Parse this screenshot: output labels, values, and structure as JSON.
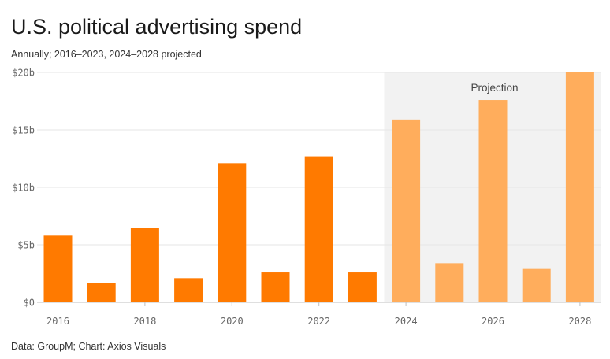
{
  "title": "U.S. political advertising spend",
  "subtitle": "Annually; 2016–2023, 2024–2028 projected",
  "source": "Data: GroupM; Chart: Axios Visuals",
  "colors": {
    "actual": "#ff7a00",
    "projected": "#ffad5c",
    "projection_bg": "#f2f2f2",
    "grid": "#e6e6e6",
    "axis_text": "#666666"
  },
  "chart_data": {
    "type": "bar",
    "title": "U.S. political advertising spend",
    "subtitle": "Annually; 2016–2023, 2024–2028 projected",
    "categories": [
      "2016",
      "2017",
      "2018",
      "2019",
      "2020",
      "2021",
      "2022",
      "2023",
      "2024",
      "2025",
      "2026",
      "2027",
      "2028"
    ],
    "values": [
      5.8,
      1.7,
      6.5,
      2.1,
      12.1,
      2.6,
      12.7,
      2.6,
      15.9,
      3.4,
      17.6,
      2.9,
      20.0
    ],
    "projected": [
      false,
      false,
      false,
      false,
      false,
      false,
      false,
      false,
      true,
      true,
      true,
      true,
      true
    ],
    "x_tick_labels": [
      "2016",
      "2018",
      "2020",
      "2022",
      "2024",
      "2026",
      "2028"
    ],
    "y_ticks": [
      0,
      5,
      10,
      15,
      20
    ],
    "y_tick_labels": [
      "$0",
      "$5b",
      "$10b",
      "$15b",
      "$20b"
    ],
    "ylim": [
      0,
      20
    ],
    "grid": true,
    "annotation": "Projection",
    "xlabel": "",
    "ylabel": ""
  }
}
